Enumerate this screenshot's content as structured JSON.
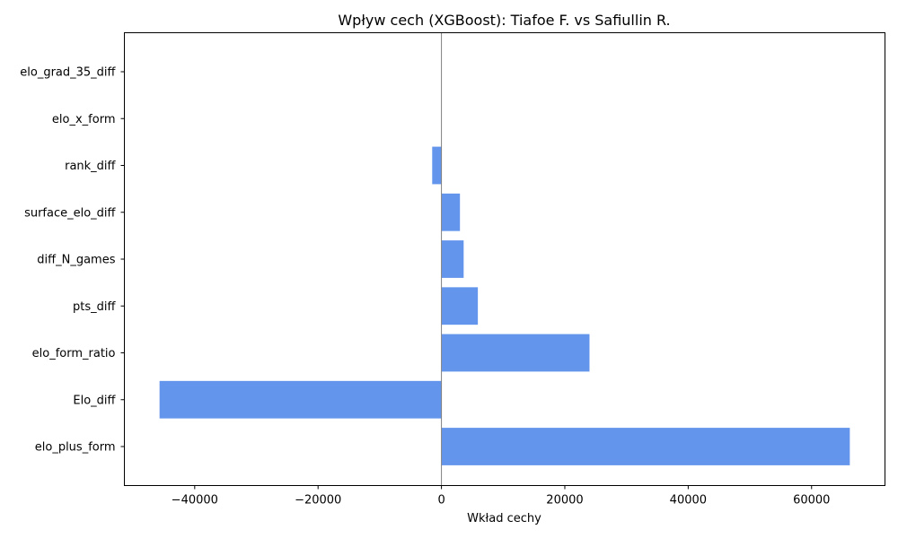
{
  "chart_data": {
    "type": "bar",
    "orientation": "horizontal",
    "title": "Wpływ cech (XGBoost): Tiafoe F. vs Safiullin R.",
    "xlabel": "Wkład cechy",
    "ylabel": "",
    "categories": [
      "elo_plus_form",
      "Elo_diff",
      "elo_form_ratio",
      "pts_diff",
      "diff_N_games",
      "surface_elo_diff",
      "rank_diff",
      "elo_x_form",
      "elo_grad_35_diff"
    ],
    "values": [
      66200,
      -45700,
      24000,
      5900,
      3600,
      3000,
      -1500,
      0,
      0
    ],
    "xlim": [
      -51400,
      71900
    ],
    "xticks": [
      -40000,
      -20000,
      0,
      20000,
      40000,
      60000
    ],
    "xtick_labels": [
      "−40000",
      "−20000",
      "0",
      "20000",
      "40000",
      "60000"
    ],
    "bar_color": "#6495ED",
    "zero_line_color": "#808080",
    "grid": false,
    "legend": "none"
  }
}
